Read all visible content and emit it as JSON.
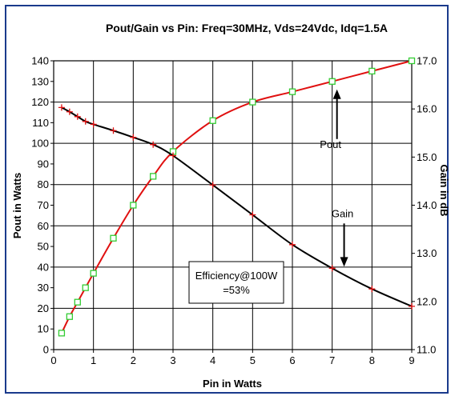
{
  "chart_data": {
    "type": "line",
    "title": "Pout/Gain vs Pin: Freq=30MHz, Vds=24Vdc, Idq=1.5A",
    "xlabel": "Pin in Watts",
    "ylabel_left": "Pout in Watts",
    "ylabel_right": "Gain in dB",
    "xlim": [
      0,
      9
    ],
    "ylim_left": [
      0,
      140
    ],
    "ylim_right": [
      11.0,
      17.0
    ],
    "x_ticks": [
      "0",
      "1",
      "2",
      "3",
      "4",
      "5",
      "6",
      "7",
      "8",
      "9"
    ],
    "y_left_ticks": [
      "0",
      "10",
      "20",
      "30",
      "40",
      "50",
      "60",
      "70",
      "80",
      "90",
      "100",
      "110",
      "120",
      "130",
      "140"
    ],
    "y_right_ticks": [
      "11.0",
      "12.0",
      "13.0",
      "14.0",
      "15.0",
      "16.0",
      "17.0"
    ],
    "grid": true,
    "series": [
      {
        "name": "Pout",
        "axis": "left",
        "color": "#e01010",
        "marker": "square",
        "marker_color": "#33cc33",
        "points": [
          [
            0.2,
            8
          ],
          [
            0.4,
            16
          ],
          [
            0.6,
            23
          ],
          [
            0.8,
            30
          ],
          [
            1.0,
            37
          ],
          [
            1.5,
            54
          ],
          [
            2.0,
            70
          ],
          [
            2.5,
            84
          ],
          [
            3.0,
            96
          ],
          [
            4.0,
            111
          ],
          [
            5.0,
            120
          ],
          [
            6.0,
            125
          ],
          [
            7.0,
            130
          ],
          [
            8.0,
            135
          ],
          [
            9.0,
            140
          ]
        ]
      },
      {
        "name": "Gain",
        "axis": "right",
        "color": "#000000",
        "marker": "plus",
        "marker_color": "#e01010",
        "points": [
          [
            0.2,
            16.03
          ],
          [
            0.4,
            15.94
          ],
          [
            0.6,
            15.84
          ],
          [
            0.8,
            15.74
          ],
          [
            1.0,
            15.68
          ],
          [
            1.5,
            15.55
          ],
          [
            2.0,
            15.41
          ],
          [
            2.5,
            15.26
          ],
          [
            3.0,
            15.03
          ],
          [
            4.0,
            14.42
          ],
          [
            5.0,
            13.8
          ],
          [
            6.0,
            13.18
          ],
          [
            7.0,
            12.69
          ],
          [
            8.0,
            12.26
          ],
          [
            9.0,
            11.9
          ]
        ]
      }
    ],
    "annotations": [
      {
        "text": "Pout",
        "arrow_to": [
          7.0,
          130
        ],
        "axis": "left"
      },
      {
        "text": "Gain",
        "arrow_to": [
          7.3,
          12.69
        ],
        "axis": "right"
      }
    ],
    "textbox": [
      "Efficiency@100W",
      "=53%"
    ]
  }
}
